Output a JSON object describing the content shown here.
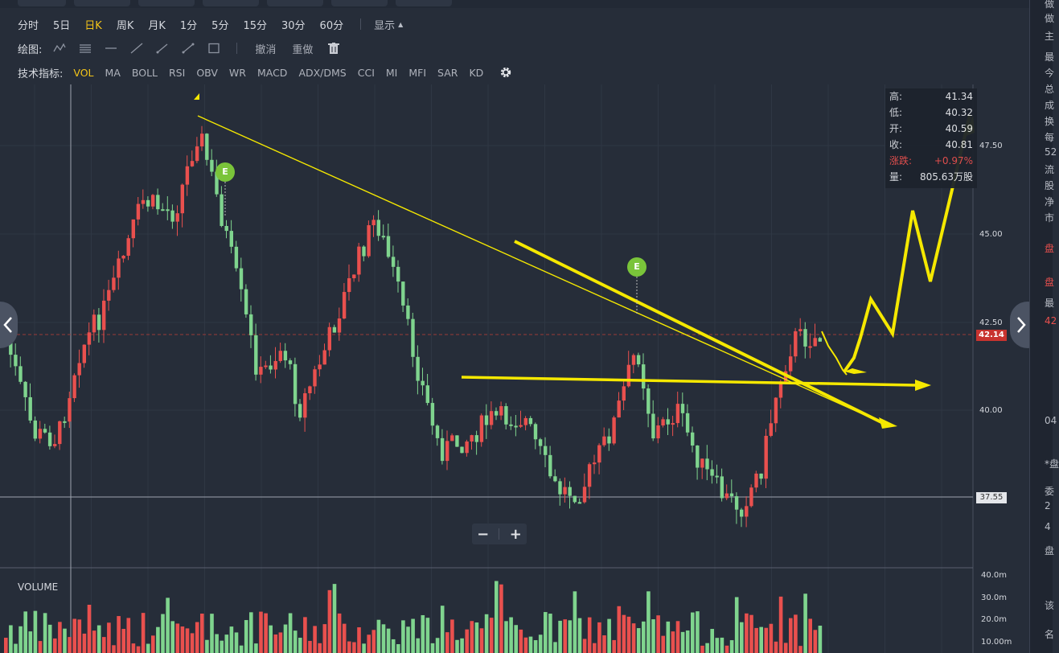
{
  "toolbar": {
    "periods": [
      "分时",
      "5日",
      "日K",
      "周K",
      "月K",
      "1分",
      "5分",
      "15分",
      "30分",
      "60分"
    ],
    "active_period": "日K",
    "display_label": "显示"
  },
  "draw": {
    "label": "绘图:",
    "undo": "撤消",
    "redo": "重做"
  },
  "indicators": {
    "label": "技术指标:",
    "items": [
      "VOL",
      "MA",
      "BOLL",
      "RSI",
      "OBV",
      "WR",
      "MACD",
      "ADX/DMS",
      "CCI",
      "MI",
      "MFI",
      "SAR",
      "KD"
    ],
    "active": "VOL"
  },
  "info_box": {
    "high_label": "高:",
    "high": "41.34",
    "low_label": "低:",
    "low": "40.32",
    "open_label": "开:",
    "open": "40.59",
    "close_label": "收:",
    "close": "40.81",
    "change_label": "涨跌:",
    "change": "+0.97%",
    "volume_label": "量:",
    "volume": "805.63万股"
  },
  "price_axis": {
    "ticks": [
      "47.50",
      "45.00",
      "42.50",
      "40.00"
    ],
    "current_price": "42.14",
    "cursor_price": "37.55"
  },
  "volume_panel": {
    "label": "VOLUME",
    "ticks": [
      "40.0m",
      "30.0m",
      "20.0m",
      "10.00m"
    ]
  },
  "earnings_marker": "E",
  "zoom": {
    "minus": "−",
    "plus": "+"
  },
  "colors": {
    "background": "#262d39",
    "up": "#e9504e",
    "down": "#7fd48e",
    "annotation": "#f5e800",
    "active": "#f5c518",
    "earnings": "#7ac43a",
    "price_tag": "#c8332f"
  },
  "right_panel": {
    "chars": [
      "做",
      "做",
      "主",
      "最",
      "今",
      "总",
      "成",
      "换",
      "每",
      "52",
      "流",
      "股",
      "净",
      "市",
      "盘",
      "盘",
      "最",
      "42",
      "04",
      "*盘",
      "委",
      "2",
      "4",
      "盘",
      "该",
      "名"
    ]
  }
}
